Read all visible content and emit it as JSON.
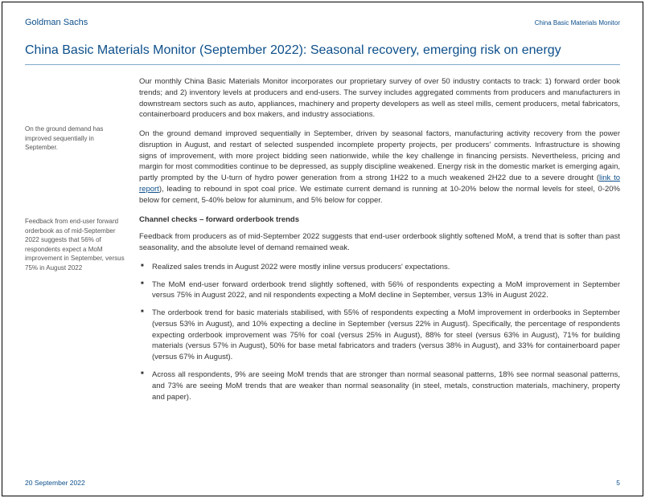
{
  "header": {
    "brand": "Goldman Sachs",
    "doc_tag": "China Basic Materials Monitor"
  },
  "title": "China Basic Materials Monitor (September 2022): Seasonal recovery, emerging risk on energy",
  "margin_notes": {
    "note1": "On the ground demand has improved sequentially in September.",
    "note2": "Feedback from end-user forward orderbook as of mid-September 2022 suggests that 56% of respondents expect a MoM improvement in September, versus 75% in August 2022"
  },
  "body": {
    "p1": "Our monthly China Basic Materials Monitor incorporates our proprietary survey of over 50 industry contacts to track: 1) forward order book trends; and 2) inventory levels at producers and end-users. The survey includes aggregated comments from producers and manufacturers in downstream sectors such as auto, appliances, machinery and property developers as well as steel mills, cement producers, metal fabricators, containerboard producers and box makers, and industry associations.",
    "p2a": "On the ground demand improved sequentially in September, driven by seasonal factors, manufacturing activity recovery from the power disruption in August, and restart of selected suspended incomplete property projects, per producers' comments. Infrastructure is showing signs of improvement, with more project bidding seen nationwide, while the key challenge in financing persists. Nevertheless, pricing and margin for most commodities continue to be depressed, as supply discipline weakened. Energy risk in the domestic market is emerging again, partly prompted by the U-turn of hydro power generation from a strong 1H22 to a much weakened 2H22 due to a severe drought (",
    "p2_link": "link to report",
    "p2b": "), leading to rebound in spot coal price. We estimate current demand is running at 10-20% below the normal levels for steel, 0-20% below for cement, 5-40% below for aluminum, and 5% below for copper.",
    "subhead": "Channel checks – forward orderbook trends",
    "p3": "Feedback from producers as of mid-September 2022 suggests that end-user orderbook slightly softened MoM, a trend that is softer than past seasonality, and the absolute level of demand remained weak.",
    "bullets": {
      "b1": "Realized sales trends in August 2022 were mostly inline versus producers' expectations.",
      "b2": "The MoM end-user forward orderbook trend slightly softened, with 56% of respondents expecting a MoM improvement in September versus 75% in August 2022, and nil respondents expecting a MoM decline in September, versus 13% in August 2022.",
      "b3": "The orderbook trend for basic materials stabilised, with 55% of respondents expecting a MoM improvement in orderbooks in September (versus 53% in August), and 10% expecting a decline in September (versus 22% in August). Specifically, the percentage of respondents expecting orderbook improvement was 75% for coal (versus 25% in August), 88% for steel (versus 63% in August), 71% for building materials (versus 57% in August), 50% for base metal fabricators and traders (versus 38% in August), and 33% for containerboard paper (versus 67% in August).",
      "b4": "Across all respondents, 9% are seeing MoM trends that are stronger than normal seasonal patterns, 18% see normal seasonal patterns, and 73% are seeing MoM trends that are weaker than normal seasonality (in steel, metals, construction materials, machinery, property and paper)."
    }
  },
  "footer": {
    "date": "20 September 2022",
    "page": "5"
  },
  "colors": {
    "brand_blue": "#0d4f8b",
    "rule_blue": "#7fa8c9",
    "text": "#333333",
    "margin_text": "#555555",
    "background": "#ffffff"
  }
}
